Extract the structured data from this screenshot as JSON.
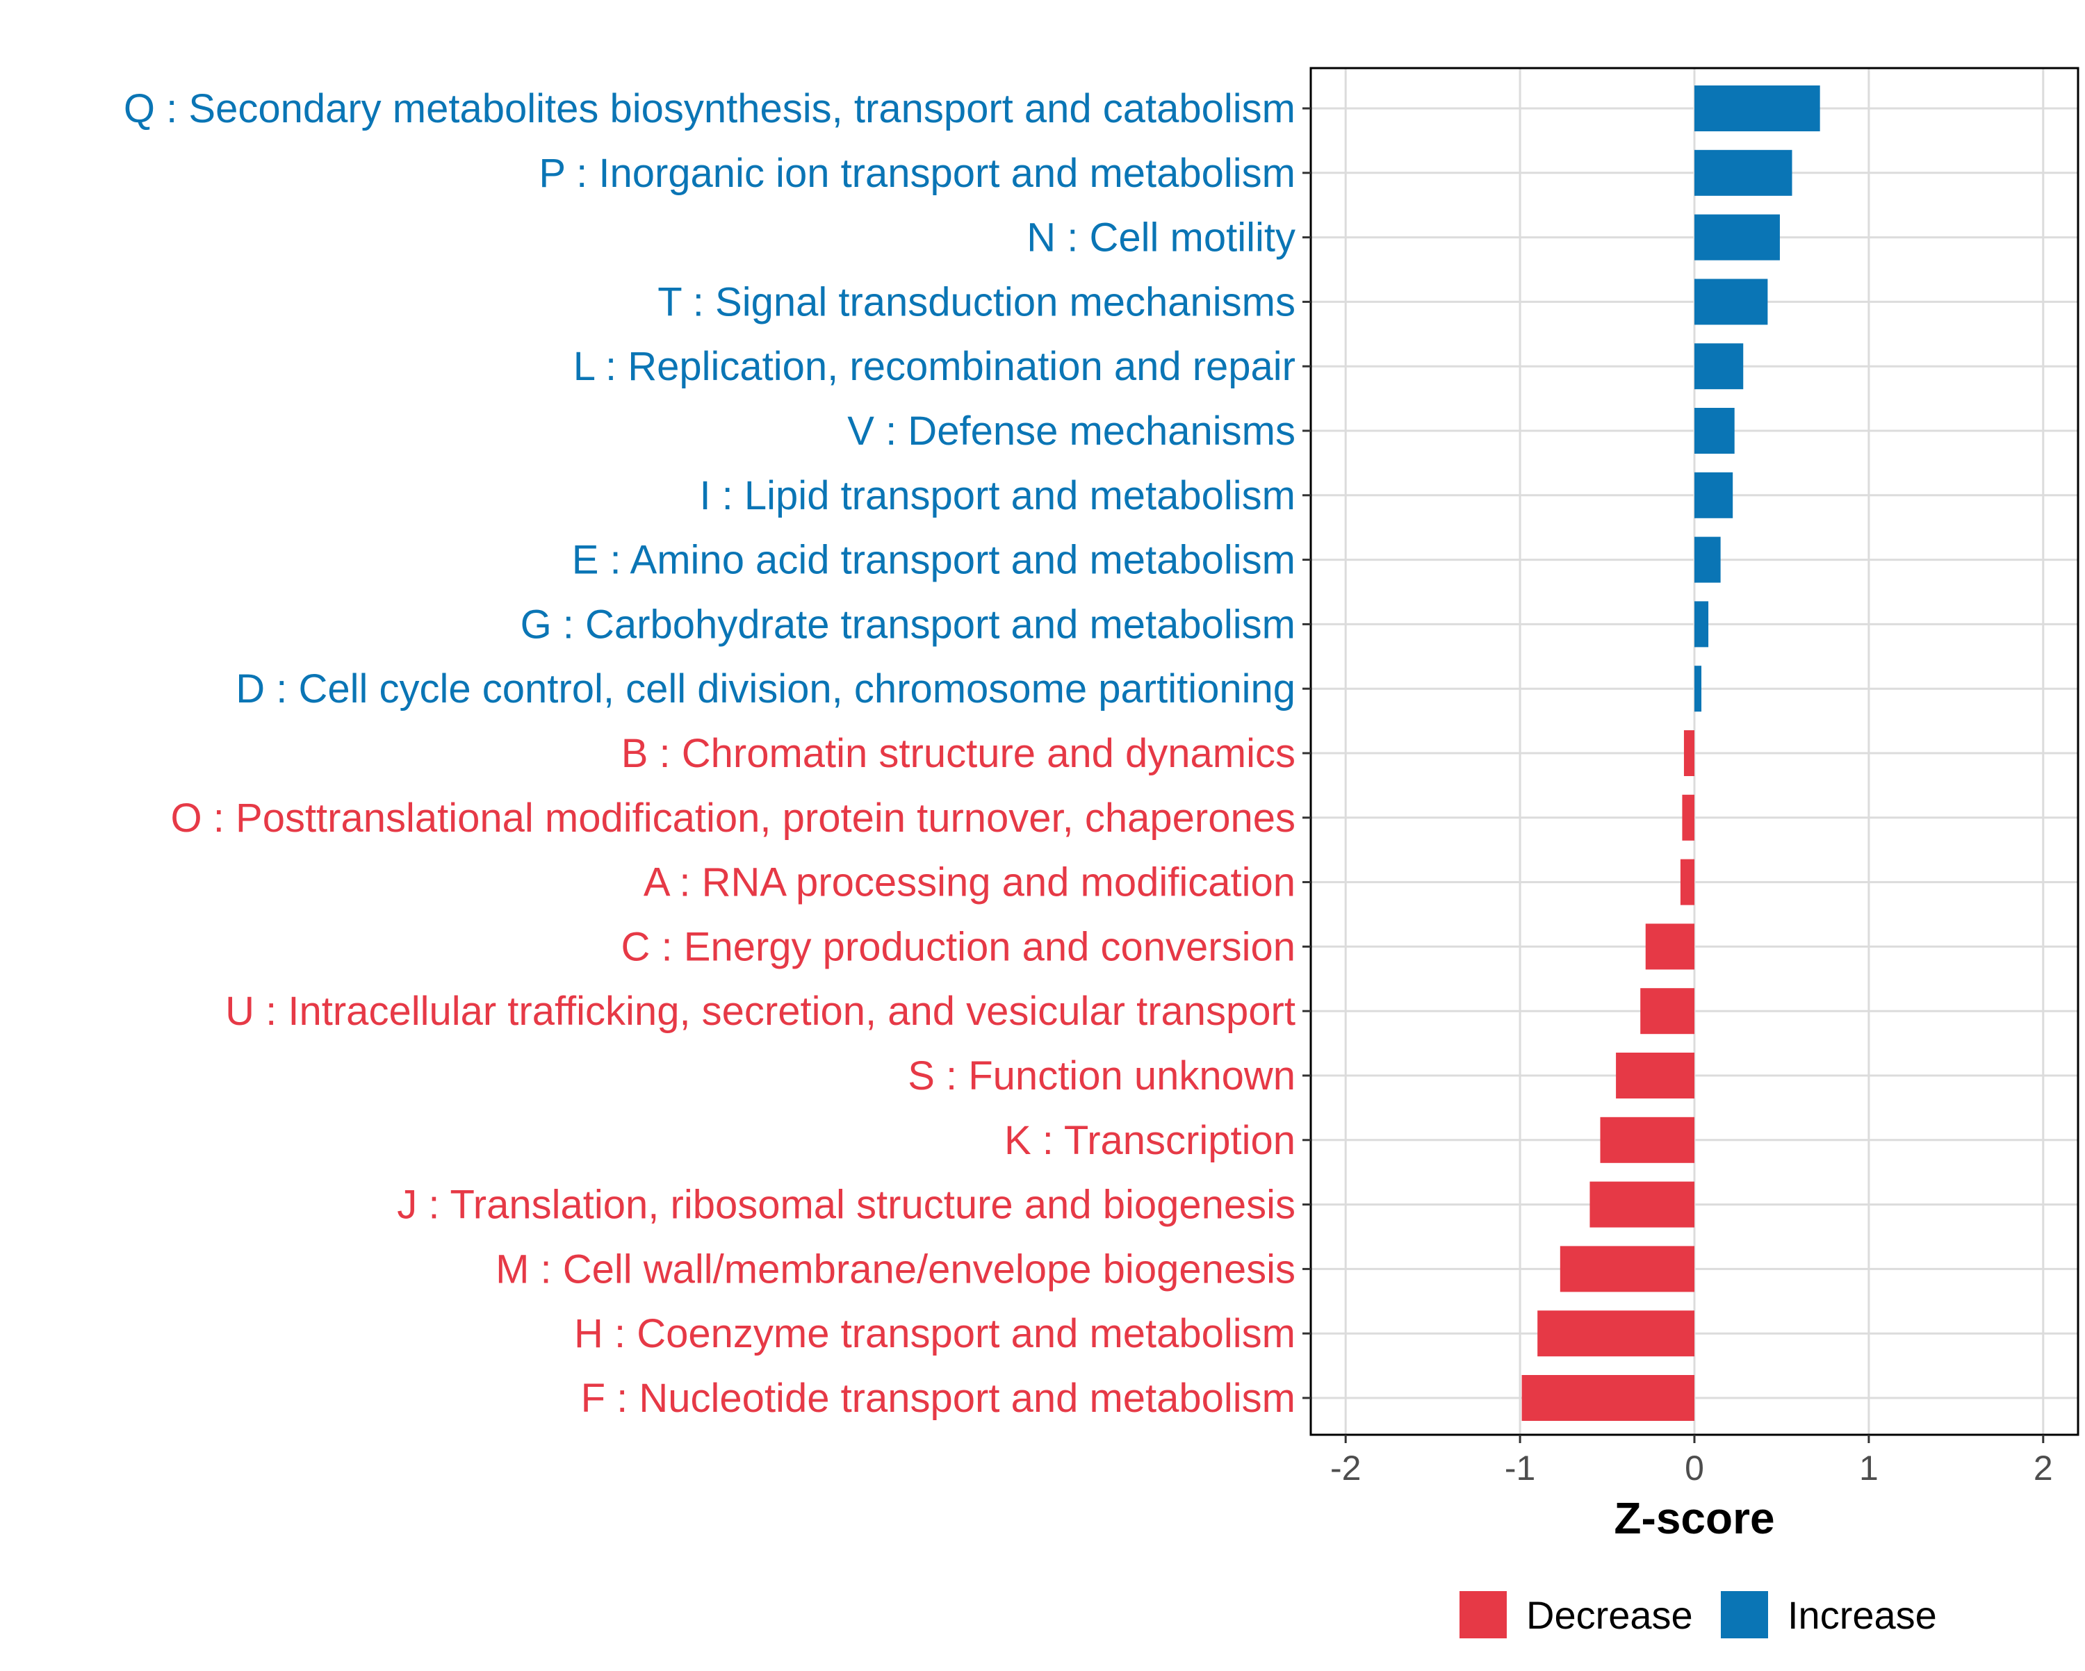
{
  "chart_data": {
    "type": "bar",
    "orientation": "horizontal",
    "xlabel": "Z-score",
    "ylabel": "",
    "xlim": [
      -2.2,
      2.2
    ],
    "xticks": [
      -2,
      -1,
      0,
      1,
      2
    ],
    "xtick_labels": [
      "-2",
      "-1",
      "0",
      "1",
      "2"
    ],
    "grid": true,
    "legend_position": "bottom",
    "series": [
      {
        "name": "Decrease",
        "color": "#E63946"
      },
      {
        "name": "Increase",
        "color": "#0A75B5"
      }
    ],
    "bars": [
      {
        "label": "Q : Secondary metabolites biosynthesis, transport and catabolism",
        "value": 0.72,
        "series": "Increase"
      },
      {
        "label": "P : Inorganic ion transport and metabolism",
        "value": 0.56,
        "series": "Increase"
      },
      {
        "label": "N : Cell motility",
        "value": 0.49,
        "series": "Increase"
      },
      {
        "label": "T : Signal transduction mechanisms",
        "value": 0.42,
        "series": "Increase"
      },
      {
        "label": "L : Replication, recombination and repair",
        "value": 0.28,
        "series": "Increase"
      },
      {
        "label": "V : Defense mechanisms",
        "value": 0.23,
        "series": "Increase"
      },
      {
        "label": "I : Lipid transport and metabolism",
        "value": 0.22,
        "series": "Increase"
      },
      {
        "label": "E : Amino acid transport and metabolism",
        "value": 0.15,
        "series": "Increase"
      },
      {
        "label": "G : Carbohydrate transport and metabolism",
        "value": 0.08,
        "series": "Increase"
      },
      {
        "label": "D : Cell cycle control, cell division, chromosome partitioning",
        "value": 0.04,
        "series": "Increase"
      },
      {
        "label": "B : Chromatin structure and dynamics",
        "value": -0.06,
        "series": "Decrease"
      },
      {
        "label": "O : Posttranslational modification, protein turnover, chaperones",
        "value": -0.07,
        "series": "Decrease"
      },
      {
        "label": "A : RNA processing and modification",
        "value": -0.08,
        "series": "Decrease"
      },
      {
        "label": "C : Energy production and conversion",
        "value": -0.28,
        "series": "Decrease"
      },
      {
        "label": "U : Intracellular trafficking, secretion, and vesicular transport",
        "value": -0.31,
        "series": "Decrease"
      },
      {
        "label": "S : Function unknown",
        "value": -0.45,
        "series": "Decrease"
      },
      {
        "label": "K : Transcription",
        "value": -0.54,
        "series": "Decrease"
      },
      {
        "label": "J : Translation, ribosomal structure and biogenesis",
        "value": -0.6,
        "series": "Decrease"
      },
      {
        "label": "M : Cell wall/membrane/envelope biogenesis",
        "value": -0.77,
        "series": "Decrease"
      },
      {
        "label": "H : Coenzyme transport and metabolism",
        "value": -0.9,
        "series": "Decrease"
      },
      {
        "label": "F : Nucleotide transport and metabolism",
        "value": -0.99,
        "series": "Decrease"
      }
    ]
  }
}
